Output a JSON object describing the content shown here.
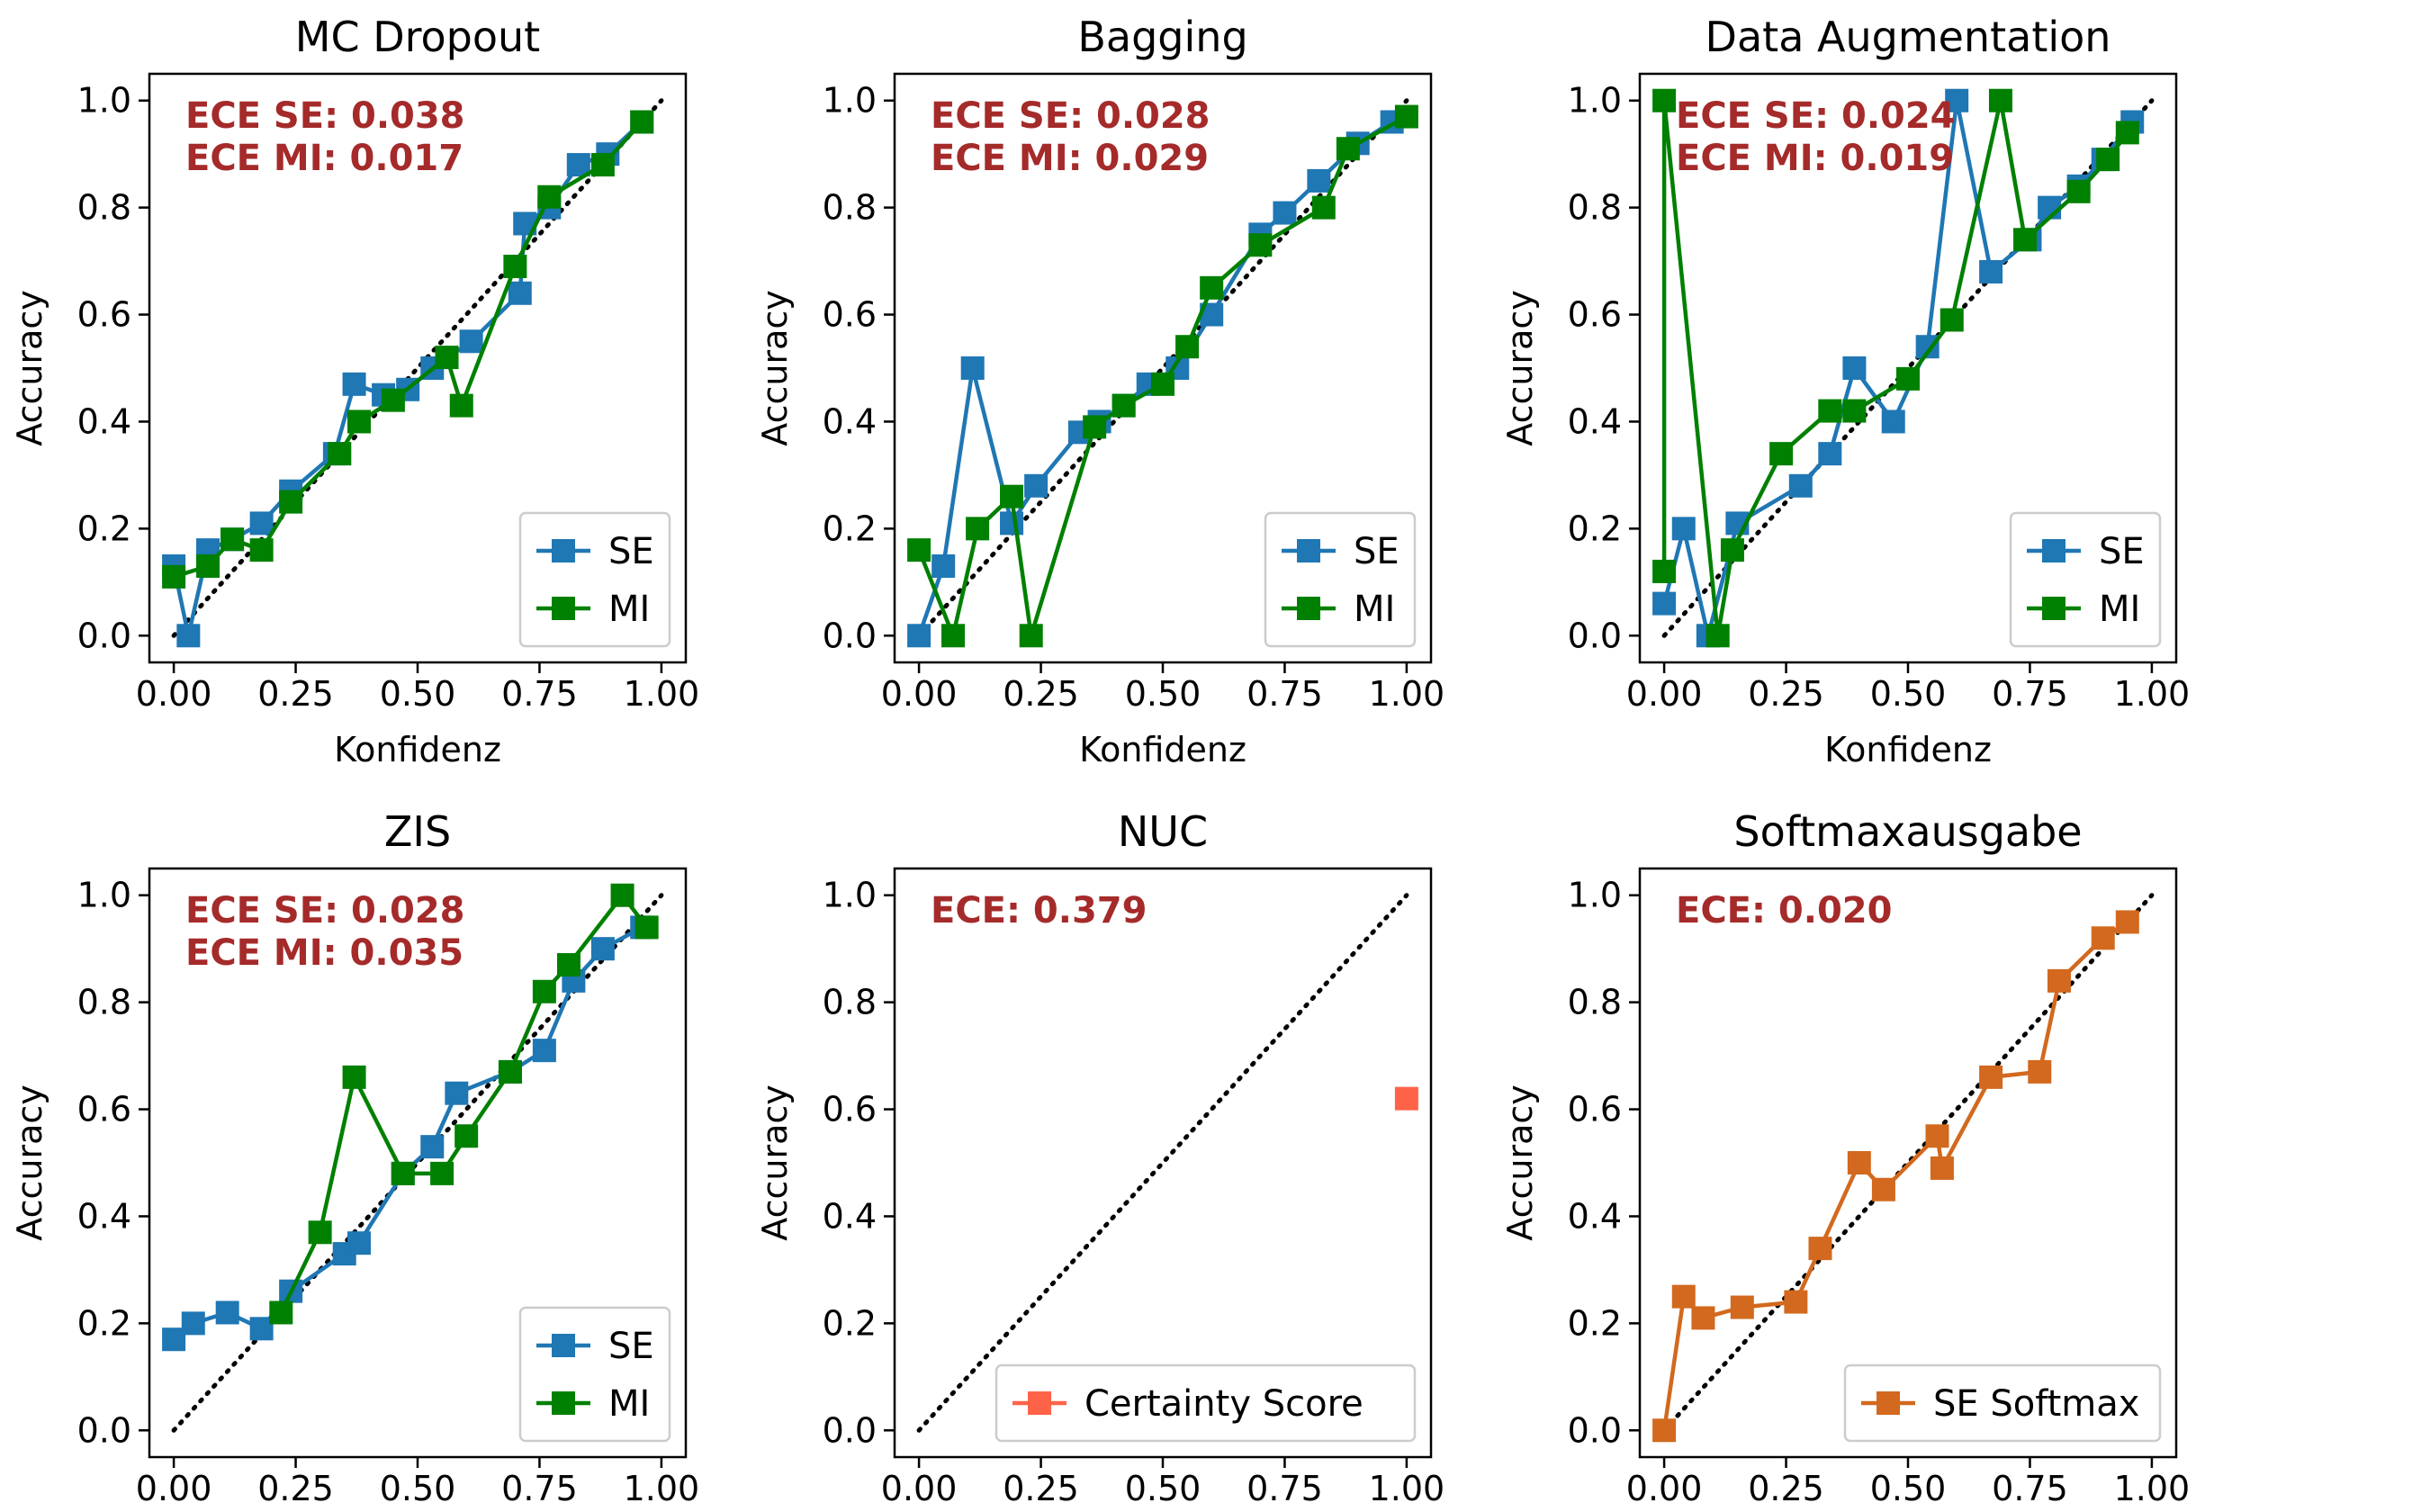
{
  "colors": {
    "se": "#1f77b4",
    "mi": "#008000",
    "certainty": "#ff6347",
    "softmax": "#d2691e",
    "ece_text": "#a52a2a",
    "diagonal": "#000000"
  },
  "chart_data": [
    {
      "type": "line",
      "title": "MC Dropout",
      "xlabel": "Konfidenz",
      "ylabel": "Accuracy",
      "xlim": [
        -0.05,
        1.05
      ],
      "ylim": [
        -0.05,
        1.05
      ],
      "xticks": [
        "0.00",
        "0.25",
        "0.50",
        "0.75",
        "1.00"
      ],
      "yticks": [
        "0.0",
        "0.2",
        "0.4",
        "0.6",
        "0.8",
        "1.0"
      ],
      "annotation_lines": [
        "ECE SE: 0.038",
        "ECE MI: 0.017"
      ],
      "legend_location": "lower-right",
      "reference": "dotted diagonal y = x",
      "series": [
        {
          "name": "SE",
          "color_key": "se",
          "x": [
            0.0,
            0.03,
            0.07,
            0.12,
            0.18,
            0.24,
            0.33,
            0.37,
            0.43,
            0.48,
            0.53,
            0.61,
            0.71,
            0.72,
            0.77,
            0.83,
            0.89,
            0.96
          ],
          "y": [
            0.13,
            0.0,
            0.16,
            0.18,
            0.21,
            0.27,
            0.34,
            0.47,
            0.45,
            0.46,
            0.5,
            0.55,
            0.64,
            0.77,
            0.8,
            0.88,
            0.9,
            0.96
          ]
        },
        {
          "name": "MI",
          "color_key": "mi",
          "x": [
            0.0,
            0.07,
            0.12,
            0.18,
            0.24,
            0.34,
            0.38,
            0.45,
            0.56,
            0.59,
            0.7,
            0.77,
            0.88,
            0.96
          ],
          "y": [
            0.11,
            0.13,
            0.18,
            0.16,
            0.25,
            0.34,
            0.4,
            0.44,
            0.52,
            0.43,
            0.69,
            0.82,
            0.88,
            0.96
          ]
        }
      ]
    },
    {
      "type": "line",
      "title": "Bagging",
      "xlabel": "Konfidenz",
      "ylabel": "Accuracy",
      "xlim": [
        -0.05,
        1.05
      ],
      "ylim": [
        -0.05,
        1.05
      ],
      "xticks": [
        "0.00",
        "0.25",
        "0.50",
        "0.75",
        "1.00"
      ],
      "yticks": [
        "0.0",
        "0.2",
        "0.4",
        "0.6",
        "0.8",
        "1.0"
      ],
      "annotation_lines": [
        "ECE SE: 0.028",
        "ECE MI: 0.029"
      ],
      "legend_location": "lower-right",
      "reference": "dotted diagonal y = x",
      "series": [
        {
          "name": "SE",
          "color_key": "se",
          "x": [
            0.0,
            0.05,
            0.11,
            0.19,
            0.24,
            0.33,
            0.37,
            0.42,
            0.47,
            0.53,
            0.6,
            0.7,
            0.75,
            0.82,
            0.9,
            0.97
          ],
          "y": [
            0.0,
            0.13,
            0.5,
            0.21,
            0.28,
            0.38,
            0.4,
            0.43,
            0.47,
            0.5,
            0.6,
            0.75,
            0.79,
            0.85,
            0.92,
            0.96
          ]
        },
        {
          "name": "MI",
          "color_key": "mi",
          "x": [
            0.0,
            0.07,
            0.12,
            0.19,
            0.23,
            0.36,
            0.42,
            0.5,
            0.55,
            0.6,
            0.7,
            0.83,
            0.88,
            1.0
          ],
          "y": [
            0.16,
            0.0,
            0.2,
            0.26,
            0.0,
            0.39,
            0.43,
            0.47,
            0.54,
            0.65,
            0.73,
            0.8,
            0.91,
            0.97
          ]
        }
      ]
    },
    {
      "type": "line",
      "title": "Data Augmentation",
      "xlabel": "Konfidenz",
      "ylabel": "Accuracy",
      "xlim": [
        -0.05,
        1.05
      ],
      "ylim": [
        -0.05,
        1.05
      ],
      "xticks": [
        "0.00",
        "0.25",
        "0.50",
        "0.75",
        "1.00"
      ],
      "yticks": [
        "0.0",
        "0.2",
        "0.4",
        "0.6",
        "0.8",
        "1.0"
      ],
      "annotation_lines": [
        "ECE SE: 0.024",
        "ECE MI: 0.019"
      ],
      "legend_location": "lower-right",
      "reference": "dotted diagonal y = x",
      "series": [
        {
          "name": "SE",
          "color_key": "se",
          "x": [
            0.0,
            0.04,
            0.09,
            0.15,
            0.28,
            0.34,
            0.39,
            0.47,
            0.54,
            0.6,
            0.67,
            0.75,
            0.79,
            0.85,
            0.9,
            0.96
          ],
          "y": [
            0.06,
            0.2,
            0.0,
            0.21,
            0.28,
            0.34,
            0.5,
            0.4,
            0.54,
            1.0,
            0.68,
            0.74,
            0.8,
            0.84,
            0.89,
            0.96
          ]
        },
        {
          "name": "MI",
          "color_key": "mi",
          "x": [
            0.0,
            0.0,
            0.11,
            0.14,
            0.24,
            0.34,
            0.39,
            0.5,
            0.59,
            0.69,
            0.74,
            0.85,
            0.91,
            0.95
          ],
          "y": [
            0.12,
            1.0,
            0.0,
            0.16,
            0.34,
            0.42,
            0.42,
            0.48,
            0.59,
            1.0,
            0.74,
            0.83,
            0.89,
            0.94
          ]
        }
      ]
    },
    {
      "type": "line",
      "title": "ZIS",
      "xlabel": "",
      "ylabel": "Accuracy",
      "xlim": [
        -0.05,
        1.05
      ],
      "ylim": [
        -0.05,
        1.05
      ],
      "xticks": [
        "0.00",
        "0.25",
        "0.50",
        "0.75",
        "1.00"
      ],
      "yticks": [
        "0.0",
        "0.2",
        "0.4",
        "0.6",
        "0.8",
        "1.0"
      ],
      "annotation_lines": [
        "ECE SE: 0.028",
        "ECE MI: 0.035"
      ],
      "legend_location": "lower-right",
      "reference": "dotted diagonal y = x",
      "series": [
        {
          "name": "SE",
          "color_key": "se",
          "x": [
            0.0,
            0.04,
            0.11,
            0.18,
            0.24,
            0.35,
            0.38,
            0.47,
            0.53,
            0.58,
            0.69,
            0.76,
            0.82,
            0.88,
            0.96
          ],
          "y": [
            0.17,
            0.2,
            0.22,
            0.19,
            0.26,
            0.33,
            0.35,
            0.48,
            0.53,
            0.63,
            0.67,
            0.71,
            0.84,
            0.9,
            0.94
          ]
        },
        {
          "name": "MI",
          "color_key": "mi",
          "x": [
            0.22,
            0.3,
            0.37,
            0.47,
            0.55,
            0.6,
            0.69,
            0.76,
            0.81,
            0.92,
            0.97
          ],
          "y": [
            0.22,
            0.37,
            0.66,
            0.48,
            0.48,
            0.55,
            0.67,
            0.82,
            0.87,
            1.0,
            0.94
          ]
        }
      ]
    },
    {
      "type": "scatter",
      "title": "NUC",
      "xlabel": "",
      "ylabel": "Accuracy",
      "xlim": [
        -0.05,
        1.05
      ],
      "ylim": [
        -0.05,
        1.05
      ],
      "xticks": [
        "0.00",
        "0.25",
        "0.50",
        "0.75",
        "1.00"
      ],
      "yticks": [
        "0.0",
        "0.2",
        "0.4",
        "0.6",
        "0.8",
        "1.0"
      ],
      "annotation_lines": [
        "ECE: 0.379"
      ],
      "legend_location": "lower-right",
      "reference": "dotted diagonal y = x",
      "series": [
        {
          "name": "Certainty Score",
          "color_key": "certainty",
          "x": [
            1.0
          ],
          "y": [
            0.62
          ]
        }
      ]
    },
    {
      "type": "line",
      "title": "Softmaxausgabe",
      "xlabel": "",
      "ylabel": "Accuracy",
      "xlim": [
        -0.05,
        1.05
      ],
      "ylim": [
        -0.05,
        1.05
      ],
      "xticks": [
        "0.00",
        "0.25",
        "0.50",
        "0.75",
        "1.00"
      ],
      "yticks": [
        "0.0",
        "0.2",
        "0.4",
        "0.6",
        "0.8",
        "1.0"
      ],
      "annotation_lines": [
        "ECE: 0.020"
      ],
      "legend_location": "lower-right",
      "reference": "dotted diagonal y = x",
      "series": [
        {
          "name": "SE Softmax",
          "color_key": "softmax",
          "x": [
            0.0,
            0.04,
            0.08,
            0.16,
            0.27,
            0.32,
            0.4,
            0.45,
            0.56,
            0.57,
            0.67,
            0.77,
            0.81,
            0.9,
            0.95
          ],
          "y": [
            0.0,
            0.25,
            0.21,
            0.23,
            0.24,
            0.34,
            0.5,
            0.45,
            0.55,
            0.49,
            0.66,
            0.67,
            0.84,
            0.92,
            0.95
          ]
        }
      ]
    }
  ]
}
